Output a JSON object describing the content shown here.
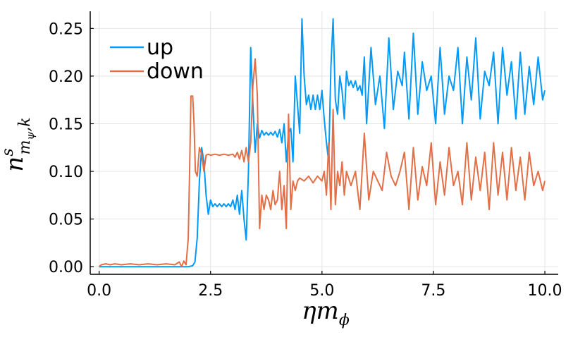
{
  "chart_data": {
    "type": "line",
    "xlabel": "ηm_ϕ",
    "ylabel": "n^s_{m_ψ,k}",
    "xlim": [
      -0.2,
      10.3
    ],
    "ylim": [
      -0.008,
      0.268
    ],
    "xticks": [
      0.0,
      2.5,
      5.0,
      7.5,
      10.0
    ],
    "xtick_labels": [
      "0.0",
      "2.5",
      "5.0",
      "7.5",
      "10.0"
    ],
    "yticks": [
      0.0,
      0.05,
      0.1,
      0.15,
      0.2,
      0.25
    ],
    "ytick_labels": [
      "0.00",
      "0.05",
      "0.10",
      "0.15",
      "0.20",
      "0.25"
    ],
    "grid": true,
    "legend_position": "top-left",
    "colors": {
      "up": "#009AFA",
      "down": "#E26F46"
    },
    "series": [
      {
        "name": "up",
        "points": [
          [
            0.0,
            0.0
          ],
          [
            0.5,
            0.0
          ],
          [
            1.0,
            0.0
          ],
          [
            1.5,
            0.0
          ],
          [
            1.9,
            0.0
          ],
          [
            2.0,
            0.0
          ],
          [
            2.1,
            0.001
          ],
          [
            2.15,
            0.005
          ],
          [
            2.2,
            0.03
          ],
          [
            2.25,
            0.09
          ],
          [
            2.3,
            0.125
          ],
          [
            2.35,
            0.11
          ],
          [
            2.4,
            0.075
          ],
          [
            2.45,
            0.055
          ],
          [
            2.5,
            0.07
          ],
          [
            2.55,
            0.063
          ],
          [
            2.6,
            0.066
          ],
          [
            2.65,
            0.063
          ],
          [
            2.7,
            0.066
          ],
          [
            2.75,
            0.063
          ],
          [
            2.8,
            0.066
          ],
          [
            2.85,
            0.063
          ],
          [
            2.9,
            0.066
          ],
          [
            2.95,
            0.063
          ],
          [
            3.0,
            0.07
          ],
          [
            3.05,
            0.06
          ],
          [
            3.1,
            0.075
          ],
          [
            3.15,
            0.055
          ],
          [
            3.2,
            0.08
          ],
          [
            3.25,
            0.05
          ],
          [
            3.3,
            0.028
          ],
          [
            3.35,
            0.1
          ],
          [
            3.4,
            0.23
          ],
          [
            3.45,
            0.17
          ],
          [
            3.5,
            0.12
          ],
          [
            3.55,
            0.15
          ],
          [
            3.6,
            0.135
          ],
          [
            3.65,
            0.143
          ],
          [
            3.7,
            0.138
          ],
          [
            3.75,
            0.141
          ],
          [
            3.8,
            0.138
          ],
          [
            3.85,
            0.141
          ],
          [
            3.9,
            0.138
          ],
          [
            3.95,
            0.142
          ],
          [
            4.0,
            0.136
          ],
          [
            4.05,
            0.144
          ],
          [
            4.1,
            0.13
          ],
          [
            4.15,
            0.15
          ],
          [
            4.2,
            0.11
          ],
          [
            4.25,
            0.14
          ],
          [
            4.3,
            0.145
          ],
          [
            4.35,
            0.11
          ],
          [
            4.4,
            0.2
          ],
          [
            4.45,
            0.17
          ],
          [
            4.5,
            0.14
          ],
          [
            4.55,
            0.26
          ],
          [
            4.6,
            0.2
          ],
          [
            4.65,
            0.17
          ],
          [
            4.7,
            0.18
          ],
          [
            4.75,
            0.165
          ],
          [
            4.8,
            0.18
          ],
          [
            4.85,
            0.165
          ],
          [
            4.9,
            0.18
          ],
          [
            4.95,
            0.165
          ],
          [
            5.0,
            0.185
          ],
          [
            5.05,
            0.155
          ],
          [
            5.1,
            0.13
          ],
          [
            5.15,
            0.11
          ],
          [
            5.2,
            0.21
          ],
          [
            5.25,
            0.26
          ],
          [
            5.3,
            0.175
          ],
          [
            5.35,
            0.16
          ],
          [
            5.4,
            0.2
          ],
          [
            5.45,
            0.185
          ],
          [
            5.5,
            0.155
          ],
          [
            5.55,
            0.205
          ],
          [
            5.6,
            0.19
          ],
          [
            5.65,
            0.195
          ],
          [
            5.7,
            0.188
          ],
          [
            5.75,
            0.195
          ],
          [
            5.8,
            0.185
          ],
          [
            5.85,
            0.19
          ],
          [
            5.9,
            0.18
          ],
          [
            5.95,
            0.22
          ],
          [
            6.0,
            0.15
          ],
          [
            6.1,
            0.23
          ],
          [
            6.2,
            0.17
          ],
          [
            6.3,
            0.2
          ],
          [
            6.4,
            0.145
          ],
          [
            6.5,
            0.24
          ],
          [
            6.6,
            0.165
          ],
          [
            6.7,
            0.205
          ],
          [
            6.8,
            0.19
          ],
          [
            6.85,
            0.225
          ],
          [
            6.95,
            0.155
          ],
          [
            7.05,
            0.245
          ],
          [
            7.15,
            0.16
          ],
          [
            7.25,
            0.215
          ],
          [
            7.35,
            0.185
          ],
          [
            7.45,
            0.2
          ],
          [
            7.55,
            0.15
          ],
          [
            7.65,
            0.23
          ],
          [
            7.75,
            0.16
          ],
          [
            7.85,
            0.2
          ],
          [
            7.95,
            0.185
          ],
          [
            8.05,
            0.23
          ],
          [
            8.15,
            0.15
          ],
          [
            8.25,
            0.22
          ],
          [
            8.35,
            0.175
          ],
          [
            8.45,
            0.24
          ],
          [
            8.55,
            0.155
          ],
          [
            8.65,
            0.205
          ],
          [
            8.75,
            0.19
          ],
          [
            8.85,
            0.225
          ],
          [
            8.95,
            0.15
          ],
          [
            9.05,
            0.23
          ],
          [
            9.15,
            0.18
          ],
          [
            9.25,
            0.215
          ],
          [
            9.35,
            0.155
          ],
          [
            9.45,
            0.225
          ],
          [
            9.55,
            0.16
          ],
          [
            9.65,
            0.21
          ],
          [
            9.75,
            0.17
          ],
          [
            9.85,
            0.22
          ],
          [
            9.95,
            0.175
          ],
          [
            10.0,
            0.185
          ]
        ]
      },
      {
        "name": "down",
        "points": [
          [
            0.0,
            0.0
          ],
          [
            0.05,
            0.002
          ],
          [
            0.15,
            0.003
          ],
          [
            0.25,
            0.002
          ],
          [
            0.35,
            0.003
          ],
          [
            0.5,
            0.002
          ],
          [
            0.7,
            0.003
          ],
          [
            0.9,
            0.002
          ],
          [
            1.1,
            0.003
          ],
          [
            1.3,
            0.002
          ],
          [
            1.5,
            0.003
          ],
          [
            1.7,
            0.002
          ],
          [
            1.8,
            0.005
          ],
          [
            1.85,
            0.0
          ],
          [
            1.9,
            0.006
          ],
          [
            1.95,
            0.002
          ],
          [
            2.0,
            0.03
          ],
          [
            2.03,
            0.1
          ],
          [
            2.06,
            0.179
          ],
          [
            2.1,
            0.179
          ],
          [
            2.13,
            0.15
          ],
          [
            2.16,
            0.1
          ],
          [
            2.2,
            0.095
          ],
          [
            2.25,
            0.125
          ],
          [
            2.3,
            0.118
          ],
          [
            2.35,
            0.1
          ],
          [
            2.4,
            0.117
          ],
          [
            2.45,
            0.118
          ],
          [
            2.5,
            0.117
          ],
          [
            2.6,
            0.118
          ],
          [
            2.7,
            0.117
          ],
          [
            2.8,
            0.118
          ],
          [
            2.9,
            0.117
          ],
          [
            3.0,
            0.118
          ],
          [
            3.05,
            0.115
          ],
          [
            3.1,
            0.12
          ],
          [
            3.15,
            0.113
          ],
          [
            3.2,
            0.122
          ],
          [
            3.25,
            0.11
          ],
          [
            3.3,
            0.125
          ],
          [
            3.35,
            0.11
          ],
          [
            3.4,
            0.13
          ],
          [
            3.45,
            0.19
          ],
          [
            3.5,
            0.218
          ],
          [
            3.55,
            0.18
          ],
          [
            3.6,
            0.04
          ],
          [
            3.65,
            0.075
          ],
          [
            3.7,
            0.06
          ],
          [
            3.75,
            0.075
          ],
          [
            3.8,
            0.07
          ],
          [
            3.85,
            0.06
          ],
          [
            3.9,
            0.08
          ],
          [
            3.95,
            0.065
          ],
          [
            4.0,
            0.07
          ],
          [
            4.05,
            0.1
          ],
          [
            4.1,
            0.06
          ],
          [
            4.15,
            0.085
          ],
          [
            4.2,
            0.04
          ],
          [
            4.25,
            0.16
          ],
          [
            4.3,
            0.06
          ],
          [
            4.35,
            0.09
          ],
          [
            4.4,
            0.08
          ],
          [
            4.45,
            0.09
          ],
          [
            4.5,
            0.093
          ],
          [
            4.6,
            0.09
          ],
          [
            4.7,
            0.095
          ],
          [
            4.8,
            0.088
          ],
          [
            4.9,
            0.095
          ],
          [
            5.0,
            0.09
          ],
          [
            5.05,
            0.1
          ],
          [
            5.1,
            0.075
          ],
          [
            5.15,
            0.13
          ],
          [
            5.2,
            0.06
          ],
          [
            5.25,
            0.165
          ],
          [
            5.3,
            0.065
          ],
          [
            5.35,
            0.1
          ],
          [
            5.4,
            0.085
          ],
          [
            5.45,
            0.11
          ],
          [
            5.5,
            0.075
          ],
          [
            5.55,
            0.1
          ],
          [
            5.65,
            0.085
          ],
          [
            5.75,
            0.1
          ],
          [
            5.85,
            0.06
          ],
          [
            5.95,
            0.14
          ],
          [
            6.05,
            0.07
          ],
          [
            6.15,
            0.1
          ],
          [
            6.25,
            0.09
          ],
          [
            6.35,
            0.08
          ],
          [
            6.45,
            0.12
          ],
          [
            6.55,
            0.095
          ],
          [
            6.65,
            0.085
          ],
          [
            6.75,
            0.1
          ],
          [
            6.85,
            0.12
          ],
          [
            6.95,
            0.06
          ],
          [
            7.05,
            0.125
          ],
          [
            7.15,
            0.07
          ],
          [
            7.25,
            0.105
          ],
          [
            7.35,
            0.085
          ],
          [
            7.45,
            0.13
          ],
          [
            7.55,
            0.065
          ],
          [
            7.65,
            0.11
          ],
          [
            7.75,
            0.075
          ],
          [
            7.85,
            0.125
          ],
          [
            7.95,
            0.085
          ],
          [
            8.05,
            0.1
          ],
          [
            8.15,
            0.065
          ],
          [
            8.25,
            0.13
          ],
          [
            8.35,
            0.07
          ],
          [
            8.45,
            0.115
          ],
          [
            8.55,
            0.08
          ],
          [
            8.65,
            0.12
          ],
          [
            8.75,
            0.06
          ],
          [
            8.85,
            0.13
          ],
          [
            8.95,
            0.075
          ],
          [
            9.05,
            0.12
          ],
          [
            9.15,
            0.07
          ],
          [
            9.25,
            0.125
          ],
          [
            9.35,
            0.08
          ],
          [
            9.45,
            0.115
          ],
          [
            9.55,
            0.07
          ],
          [
            9.65,
            0.12
          ],
          [
            9.75,
            0.085
          ],
          [
            9.85,
            0.1
          ],
          [
            9.95,
            0.08
          ],
          [
            10.0,
            0.09
          ]
        ]
      }
    ]
  }
}
